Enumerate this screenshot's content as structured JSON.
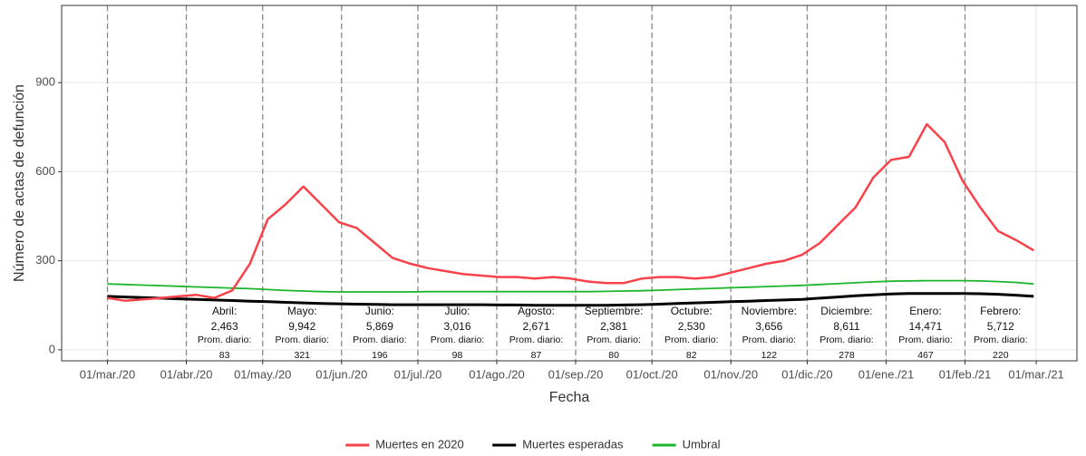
{
  "chart_data": {
    "type": "line",
    "y_label": "Número de actas de defunción",
    "x_label": "Fecha",
    "xlim": [
      "2020-02-12",
      "2021-03-17"
    ],
    "ylim": [
      -37,
      1160
    ],
    "yticks": [
      0,
      300,
      600,
      900
    ],
    "xticks": [
      {
        "value": "2020-03-01",
        "label": "01/mar./20"
      },
      {
        "value": "2020-04-01",
        "label": "01/abr./20"
      },
      {
        "value": "2020-05-01",
        "label": "01/may./20"
      },
      {
        "value": "2020-06-01",
        "label": "01/jun./20"
      },
      {
        "value": "2020-07-01",
        "label": "01/jul./20"
      },
      {
        "value": "2020-08-01",
        "label": "01/ago./20"
      },
      {
        "value": "2020-09-01",
        "label": "01/sep./20"
      },
      {
        "value": "2020-10-01",
        "label": "01/oct./20"
      },
      {
        "value": "2020-11-01",
        "label": "01/nov./20"
      },
      {
        "value": "2020-12-01",
        "label": "01/dic./20"
      },
      {
        "value": "2021-01-01",
        "label": "01/ene./21"
      },
      {
        "value": "2021-02-01",
        "label": "01/feb./21"
      },
      {
        "value": "2021-03-01",
        "label": "01/mar./21"
      }
    ],
    "vlines": [
      "2020-03-01",
      "2020-04-01",
      "2020-05-01",
      "2020-06-01",
      "2020-07-01",
      "2020-08-01",
      "2020-09-01",
      "2020-10-01",
      "2020-11-01",
      "2020-12-01",
      "2021-01-01",
      "2021-02-01"
    ],
    "grid": true,
    "legend": "bottom",
    "x": [
      "2020-03-01",
      "2020-03-08",
      "2020-03-15",
      "2020-03-22",
      "2020-03-29",
      "2020-04-05",
      "2020-04-12",
      "2020-04-19",
      "2020-04-26",
      "2020-05-03",
      "2020-05-10",
      "2020-05-17",
      "2020-05-24",
      "2020-05-31",
      "2020-06-07",
      "2020-06-14",
      "2020-06-21",
      "2020-06-28",
      "2020-07-05",
      "2020-07-12",
      "2020-07-19",
      "2020-07-26",
      "2020-08-02",
      "2020-08-09",
      "2020-08-16",
      "2020-08-23",
      "2020-08-30",
      "2020-09-06",
      "2020-09-13",
      "2020-09-20",
      "2020-09-27",
      "2020-10-04",
      "2020-10-11",
      "2020-10-18",
      "2020-10-25",
      "2020-11-01",
      "2020-11-08",
      "2020-11-15",
      "2020-11-22",
      "2020-11-29",
      "2020-12-06",
      "2020-12-13",
      "2020-12-20",
      "2020-12-27",
      "2021-01-03",
      "2021-01-10",
      "2021-01-17",
      "2021-01-24",
      "2021-01-31",
      "2021-02-07",
      "2021-02-14",
      "2021-02-21",
      "2021-02-28"
    ],
    "series": [
      {
        "name": "Muertes en 2020",
        "color": "#f8424a",
        "width": 2.5,
        "values": [
          175,
          165,
          170,
          175,
          180,
          185,
          175,
          200,
          290,
          440,
          490,
          550,
          490,
          430,
          410,
          360,
          310,
          290,
          275,
          265,
          255,
          250,
          245,
          245,
          240,
          245,
          240,
          230,
          225,
          225,
          240,
          245,
          245,
          240,
          245,
          260,
          275,
          290,
          300,
          320,
          360,
          420,
          480,
          580,
          640,
          650,
          760,
          700,
          570,
          480,
          400,
          370,
          335
        ]
      },
      {
        "name": "Muertes esperadas",
        "color": "#000000",
        "width": 3,
        "values": [
          180,
          178,
          176,
          174,
          172,
          170,
          168,
          166,
          164,
          162,
          160,
          158,
          156,
          155,
          154,
          153,
          152,
          152,
          152,
          152,
          152,
          152,
          151,
          151,
          150,
          150,
          150,
          150,
          150,
          151,
          152,
          154,
          156,
          158,
          160,
          162,
          164,
          166,
          168,
          170,
          174,
          178,
          182,
          185,
          188,
          190,
          190,
          190,
          190,
          189,
          187,
          184,
          180
        ]
      },
      {
        "name": "Umbral",
        "color": "#1db52d",
        "width": 1.8,
        "values": [
          222,
          220,
          218,
          216,
          214,
          212,
          210,
          208,
          206,
          203,
          200,
          198,
          196,
          195,
          195,
          195,
          195,
          195,
          196,
          196,
          196,
          196,
          196,
          196,
          196,
          196,
          196,
          196,
          197,
          198,
          199,
          201,
          203,
          205,
          207,
          209,
          211,
          213,
          215,
          217,
          220,
          223,
          226,
          229,
          231,
          232,
          233,
          233,
          233,
          232,
          230,
          227,
          222
        ]
      }
    ],
    "annotations": [
      {
        "month": "Abril:",
        "total": "2,463",
        "label": "Prom. diario:",
        "avg": "83"
      },
      {
        "month": "Mayo:",
        "total": "9,942",
        "label": "Prom. diario:",
        "avg": "321"
      },
      {
        "month": "Junio:",
        "total": "5,869",
        "label": "Prom. diario:",
        "avg": "196"
      },
      {
        "month": "Julio:",
        "total": "3,016",
        "label": "Prom. diario:",
        "avg": "98"
      },
      {
        "month": "Agosto:",
        "total": "2,671",
        "label": "Prom. diario:",
        "avg": "87"
      },
      {
        "month": "Septiembre:",
        "total": "2,381",
        "label": "Prom. diario:",
        "avg": "80"
      },
      {
        "month": "Octubre:",
        "total": "2,530",
        "label": "Prom. diario:",
        "avg": "82"
      },
      {
        "month": "Noviembre:",
        "total": "3,656",
        "label": "Prom. diario:",
        "avg": "122"
      },
      {
        "month": "Diciembre:",
        "total": "8,611",
        "label": "Prom. diario:",
        "avg": "278"
      },
      {
        "month": "Enero:",
        "total": "14,471",
        "label": "Prom. diario:",
        "avg": "467"
      },
      {
        "month": "Febrero:",
        "total": "5,712",
        "label": "Prom. diario:",
        "avg": "220"
      }
    ]
  }
}
